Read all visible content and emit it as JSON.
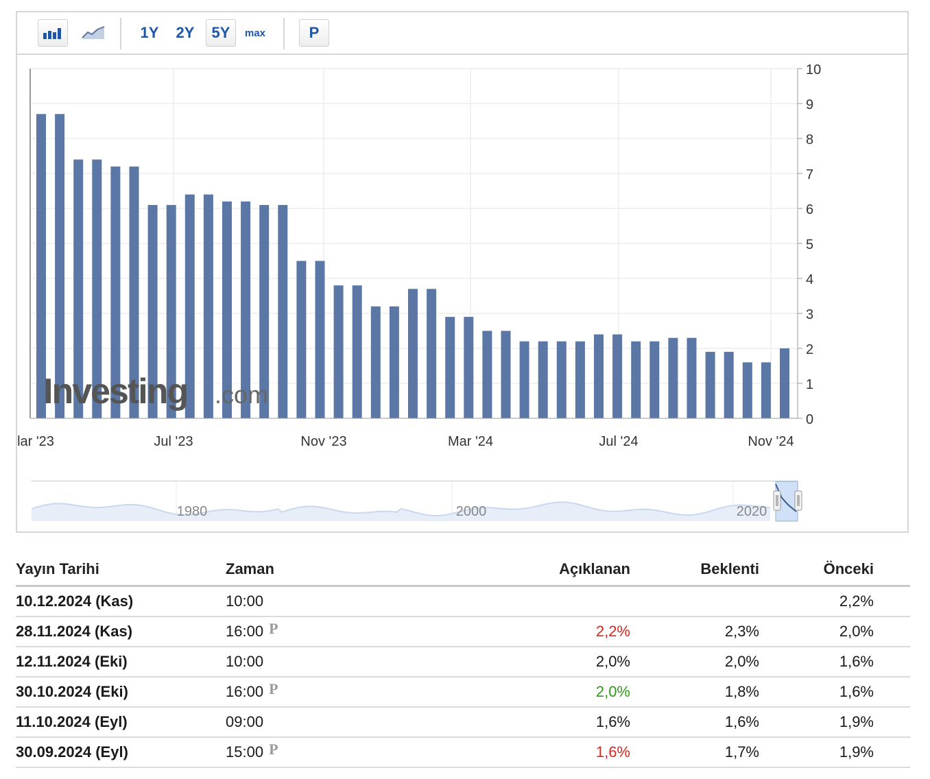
{
  "toolbar": {
    "buttons": [
      "1Y",
      "2Y",
      "5Y",
      "max",
      "P"
    ],
    "active_range": "5Y"
  },
  "watermark": {
    "brand": "Investing",
    "suffix": ".com"
  },
  "chart_data": {
    "type": "bar",
    "x_tick_labels": [
      "lar '23",
      "Jul '23",
      "Nov '23",
      "Mar '24",
      "Jul '24",
      "Nov '24"
    ],
    "ylim": [
      0,
      10
    ],
    "y_ticks": [
      0,
      1,
      2,
      3,
      4,
      5,
      6,
      7,
      8,
      9,
      10
    ],
    "values": [
      8.7,
      8.7,
      7.4,
      7.4,
      7.2,
      7.2,
      6.1,
      6.1,
      6.4,
      6.4,
      6.2,
      6.2,
      6.1,
      6.1,
      4.5,
      4.5,
      3.8,
      3.8,
      3.2,
      3.2,
      3.7,
      3.7,
      2.9,
      2.9,
      2.5,
      2.5,
      2.2,
      2.2,
      2.2,
      2.2,
      2.4,
      2.4,
      2.2,
      2.2,
      2.3,
      2.3,
      1.9,
      1.9,
      1.6,
      1.6,
      2.0
    ],
    "bar_color": "#5a77a5",
    "grid": true,
    "y_axis_side": "right"
  },
  "navigator": {
    "labels": [
      "1980",
      "2000",
      "2020"
    ],
    "series_color": "#c9d8ee"
  },
  "table": {
    "headers": {
      "date": "Yayın Tarihi",
      "time": "Zaman",
      "actual": "Açıklanan",
      "forecast": "Beklenti",
      "previous": "Önceki"
    },
    "rows": [
      {
        "date": "10.12.2024 (Kas)",
        "time": "10:00",
        "prelim": "",
        "actual": "",
        "actual_color": "",
        "forecast": "",
        "previous": "2,2%"
      },
      {
        "date": "28.11.2024 (Kas)",
        "time": "16:00",
        "prelim": "P",
        "actual": "2,2%",
        "actual_color": "red",
        "forecast": "2,3%",
        "previous": "2,0%"
      },
      {
        "date": "12.11.2024 (Eki)",
        "time": "10:00",
        "prelim": "",
        "actual": "2,0%",
        "actual_color": "",
        "forecast": "2,0%",
        "previous": "1,6%"
      },
      {
        "date": "30.10.2024 (Eki)",
        "time": "16:00",
        "prelim": "P",
        "actual": "2,0%",
        "actual_color": "green",
        "forecast": "1,8%",
        "previous": "1,6%"
      },
      {
        "date": "11.10.2024 (Eyl)",
        "time": "09:00",
        "prelim": "",
        "actual": "1,6%",
        "actual_color": "",
        "forecast": "1,6%",
        "previous": "1,9%"
      },
      {
        "date": "30.09.2024 (Eyl)",
        "time": "15:00",
        "prelim": "P",
        "actual": "1,6%",
        "actual_color": "red",
        "forecast": "1,7%",
        "previous": "1,9%"
      }
    ]
  }
}
